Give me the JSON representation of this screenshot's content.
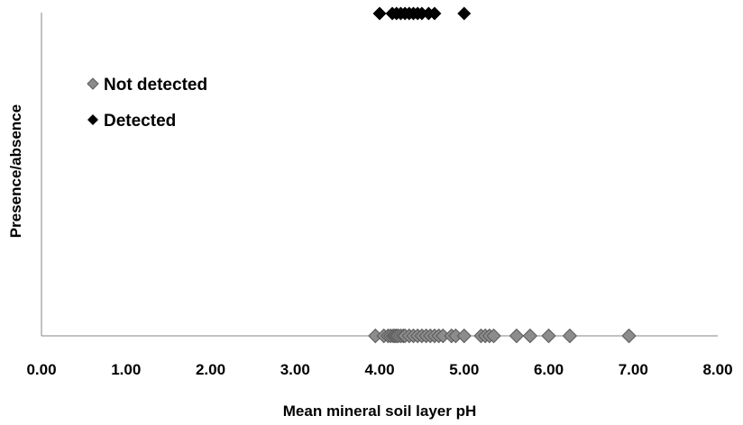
{
  "chart_data": {
    "type": "scatter",
    "title": "",
    "xlabel": "Mean mineral soil layer pH",
    "ylabel": "Presence/absence",
    "xlim": [
      0,
      8
    ],
    "ylim": [
      0,
      1
    ],
    "x_tick_labels": [
      "0.00",
      "1.00",
      "2.00",
      "3.00",
      "4.00",
      "5.00",
      "6.00",
      "7.00",
      "8.00"
    ],
    "grid": false,
    "legend_position": "upper-left",
    "series": [
      {
        "name": "Not detected",
        "color": "#8c8c8c",
        "marker": "diamond",
        "y": 0,
        "x": [
          3.95,
          4.05,
          4.1,
          4.13,
          4.16,
          4.18,
          4.2,
          4.22,
          4.25,
          4.28,
          4.3,
          4.35,
          4.4,
          4.45,
          4.5,
          4.55,
          4.6,
          4.65,
          4.7,
          4.75,
          4.85,
          4.9,
          5.0,
          5.2,
          5.25,
          5.3,
          5.35,
          5.62,
          5.78,
          6.0,
          6.25,
          6.95
        ]
      },
      {
        "name": "Detected",
        "color": "#000000",
        "marker": "diamond",
        "y": 1,
        "x": [
          4.0,
          4.15,
          4.2,
          4.25,
          4.3,
          4.35,
          4.4,
          4.45,
          4.5,
          4.58,
          4.65,
          5.0
        ]
      }
    ]
  }
}
